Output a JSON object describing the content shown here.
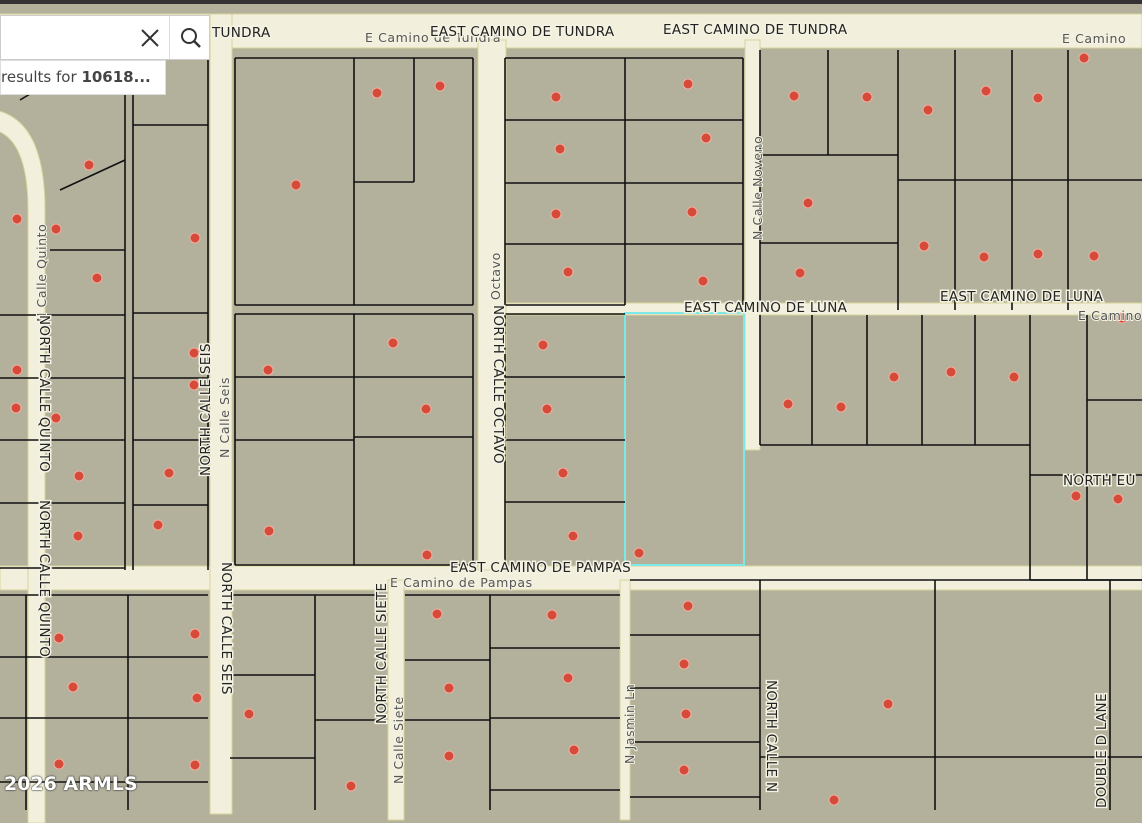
{
  "search": {
    "results_label": "results for",
    "query": "10618..."
  },
  "streets": [
    "TUNDRA",
    "E Camino de Tundra",
    "EAST CAMINO DE TUNDRA",
    "EAST CAMINO DE TUNDRA",
    "E Camino",
    "N Calle Noveno",
    "EAST CAMINO DE LUNA",
    "EAST CAMINO DE LUNA",
    "E Camino",
    "Octavo",
    "NORTH CALLE OCTAVO",
    "N Calle Quinto",
    "NORTH CALLE QUINTO",
    "NORTH CALLE QUINTO",
    "NORTH CALLE SEIS",
    "N Calle Seis",
    "EAST CAMINO DE PAMPAS",
    "E Camino de Pampas",
    "NORTH CALLE SEIS",
    "NORTH CALLE SIETE",
    "N Calle Siete",
    "N Jasmin Ln",
    "NORTH CALLE N",
    "NORTH EU",
    "DOUBLE D LANE"
  ],
  "copyright": "2026 ARMLS"
}
